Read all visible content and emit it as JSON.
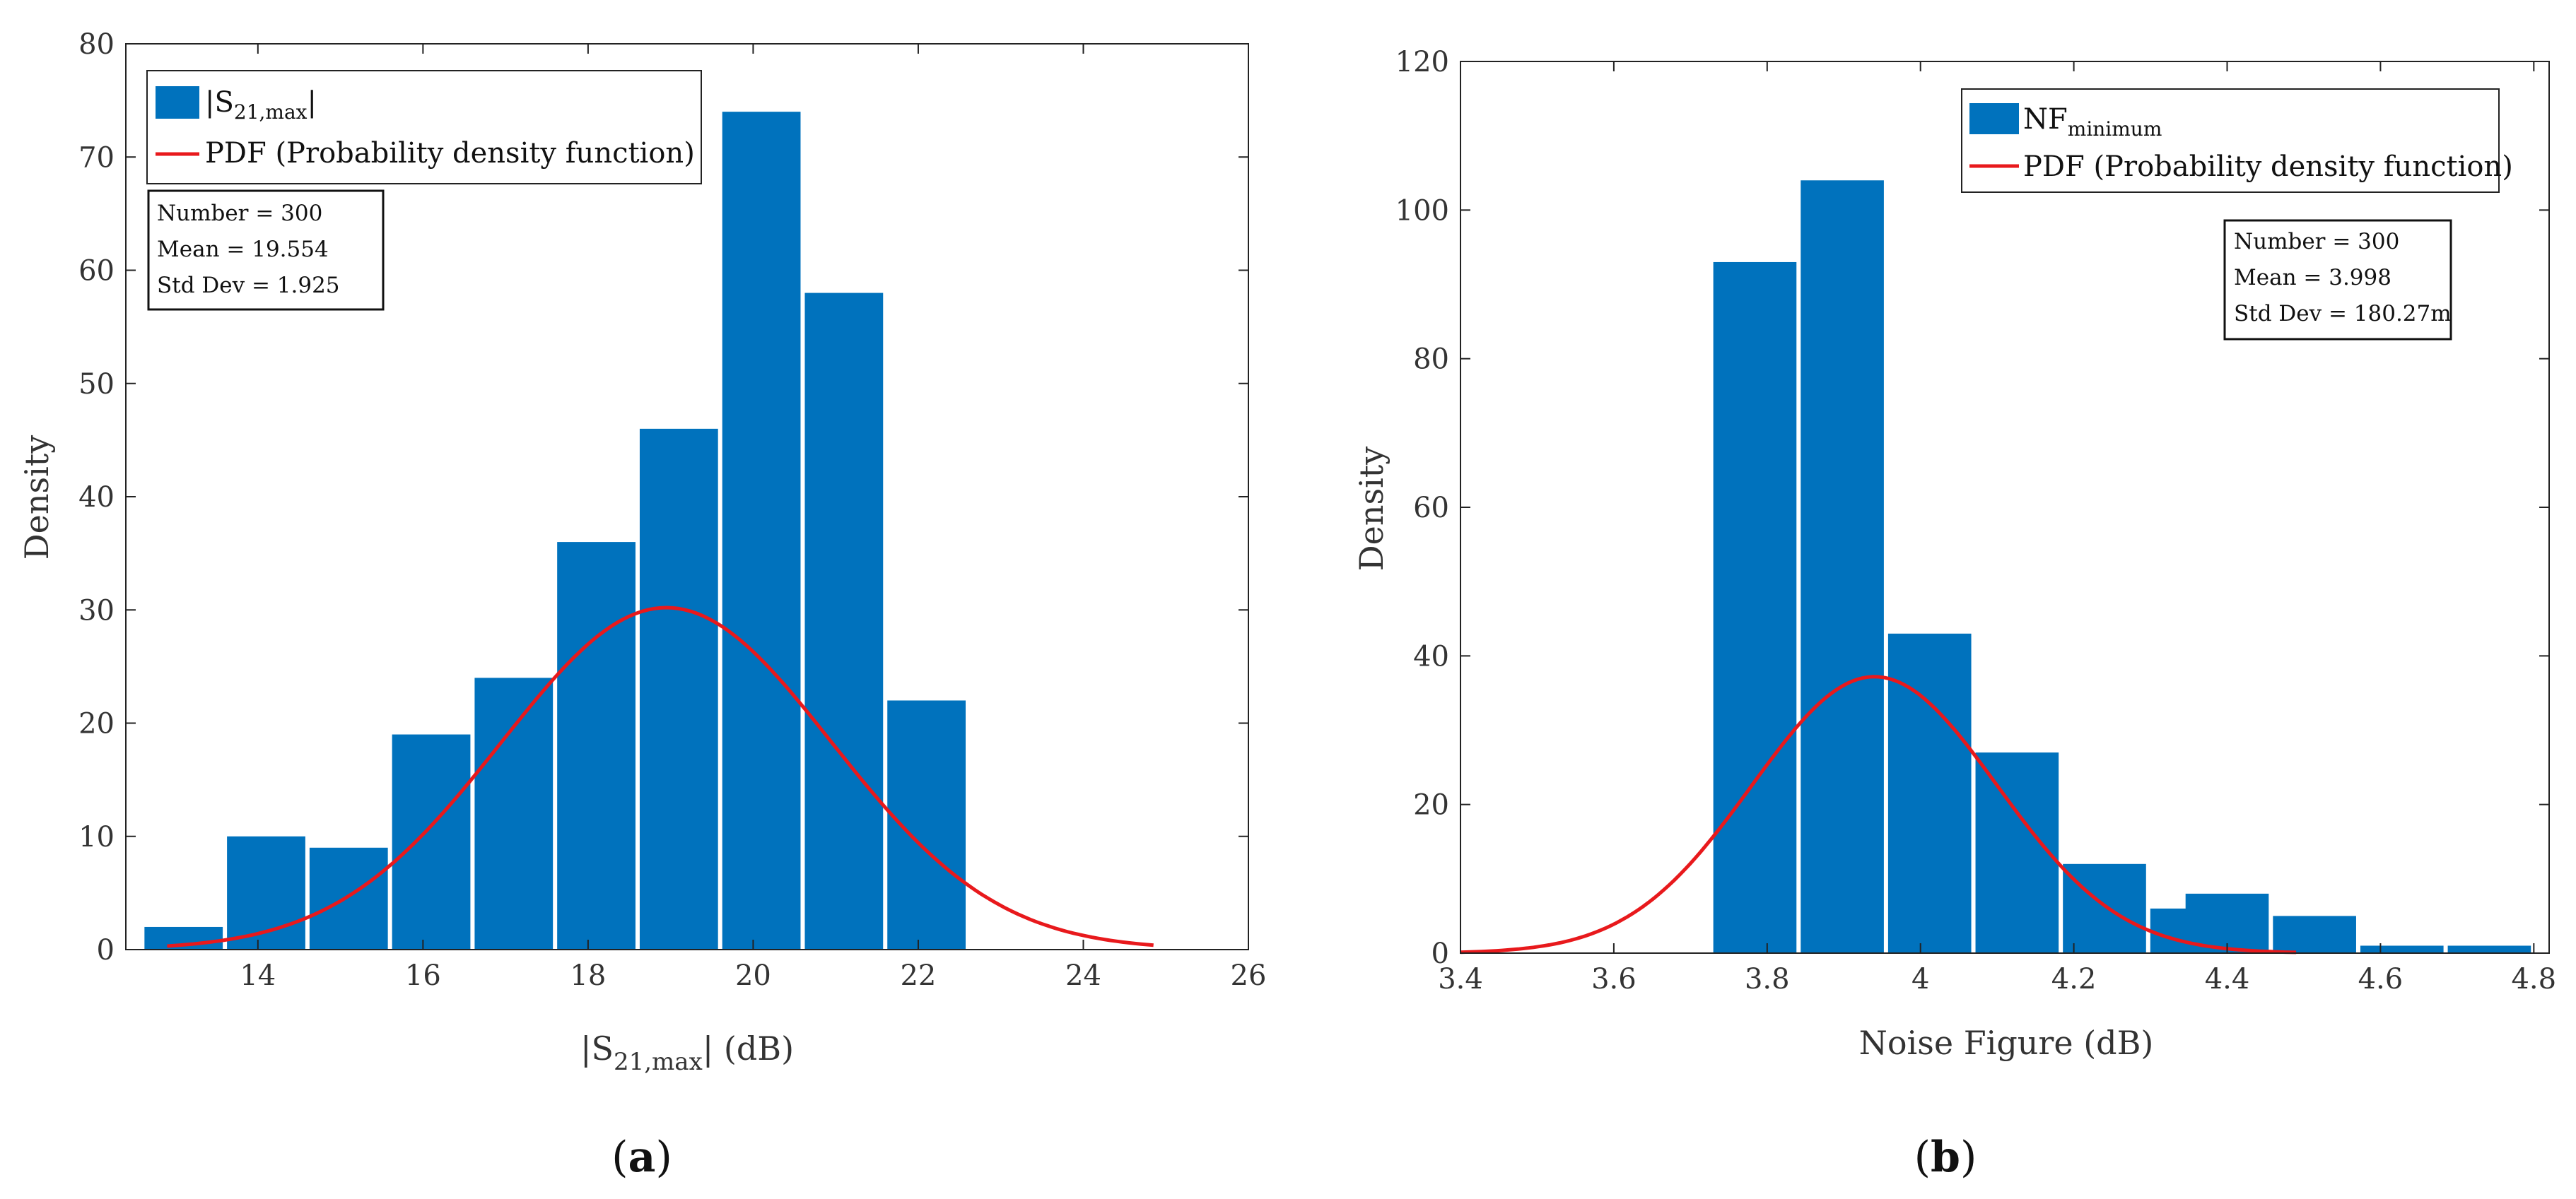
{
  "chart_data": [
    {
      "type": "bar",
      "panel_label": "a",
      "xlabel_main": "|S",
      "xlabel_sub": "21,max",
      "xlabel_tail": "| (dB)",
      "ylabel": "Density",
      "xlim": [
        12.4,
        26
      ],
      "ylim": [
        0,
        80
      ],
      "xticks": [
        14,
        16,
        18,
        20,
        22,
        24,
        26
      ],
      "yticks": [
        0,
        10,
        20,
        30,
        40,
        50,
        60,
        70,
        80
      ],
      "bin_width": 1,
      "bins": [
        {
          "start": 12.6,
          "value": 2
        },
        {
          "start": 13.6,
          "value": 10
        },
        {
          "start": 14.6,
          "value": 9
        },
        {
          "start": 15.6,
          "value": 19
        },
        {
          "start": 16.6,
          "value": 24
        },
        {
          "start": 17.6,
          "value": 36
        },
        {
          "start": 18.6,
          "value": 46
        },
        {
          "start": 19.6,
          "value": 74
        },
        {
          "start": 20.6,
          "value": 58
        },
        {
          "start": 21.6,
          "value": 22
        }
      ],
      "pdf": {
        "mean": 18.95,
        "sigma": 2.0,
        "peak": 30.2,
        "x_start": 12.9,
        "x_end": 24.85,
        "color": "#e8191c"
      },
      "bar_color": "#0072bd",
      "legend": {
        "histogram_main": "|S",
        "histogram_sub": "21,max",
        "histogram_tail": "|",
        "pdf_label": "PDF (Probability density function)"
      },
      "stats": [
        "Number = 300",
        "Mean = 19.554",
        "Std Dev = 1.925"
      ]
    },
    {
      "type": "bar",
      "panel_label": "b",
      "xlabel": "Noise Figure (dB)",
      "ylabel": "Density",
      "xlim": [
        3.4,
        4.82
      ],
      "ylim": [
        0,
        120
      ],
      "xticks": [
        3.4,
        3.6,
        3.8,
        4,
        4.2,
        4.4,
        4.6,
        4.8
      ],
      "xtick_labels": [
        "3.4",
        "3.6",
        "3.8",
        "4",
        "4.2",
        "4.4",
        "4.6",
        "4.8"
      ],
      "yticks": [
        0,
        20,
        40,
        60,
        80,
        100,
        120
      ],
      "bin_width": 0.114,
      "bins": [
        {
          "start": 3.727,
          "value": 93
        },
        {
          "start": 3.841,
          "value": 104
        },
        {
          "start": 3.955,
          "value": 43
        },
        {
          "start": 4.069,
          "value": 27
        },
        {
          "start": 4.183,
          "value": 12
        },
        {
          "start": 4.297,
          "value": 6
        },
        {
          "start": 4.343,
          "value": 8
        },
        {
          "start": 4.457,
          "value": 5
        },
        {
          "start": 4.571,
          "value": 1
        },
        {
          "start": 4.685,
          "value": 1
        }
      ],
      "pdf": {
        "mean": 3.94,
        "sigma": 0.16,
        "peak": 37.2,
        "x_start": 3.4,
        "x_end": 4.49,
        "color": "#e8191c"
      },
      "bar_color": "#0072bd",
      "legend": {
        "histogram_main": "NF",
        "histogram_sub": "minimum",
        "pdf_label": "PDF (Probability density function)"
      },
      "stats": [
        "Number = 300",
        "Mean = 3.998",
        "Std Dev = 180.27m"
      ]
    }
  ]
}
